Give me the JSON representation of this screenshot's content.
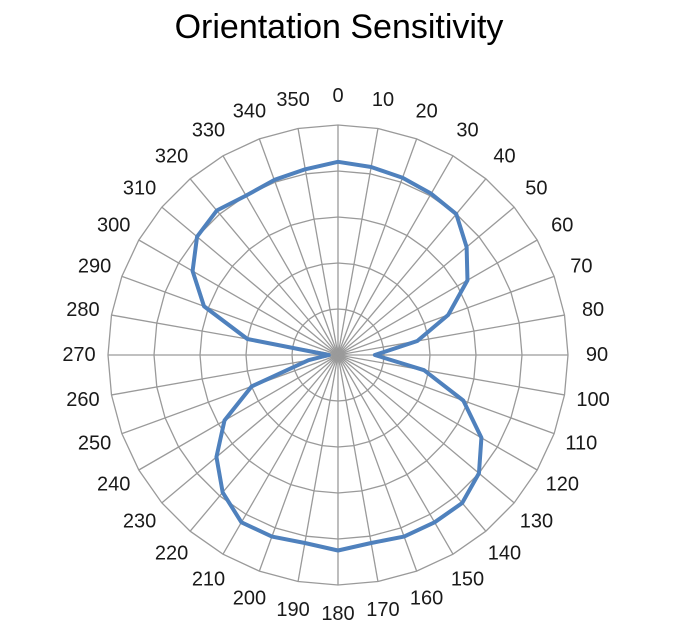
{
  "chart_data": {
    "type": "radar",
    "title": "Orientation Sensitivity",
    "angle_unit": "degrees",
    "angles": [
      0,
      10,
      20,
      30,
      40,
      50,
      60,
      70,
      80,
      90,
      100,
      110,
      120,
      130,
      140,
      150,
      160,
      170,
      180,
      190,
      200,
      210,
      220,
      230,
      240,
      250,
      260,
      270,
      280,
      290,
      300,
      310,
      320,
      330,
      340,
      350
    ],
    "series": [
      {
        "values": [
          0.84,
          0.83,
          0.82,
          0.81,
          0.8,
          0.73,
          0.65,
          0.51,
          0.35,
          0.16,
          0.38,
          0.58,
          0.72,
          0.8,
          0.84,
          0.84,
          0.84,
          0.83,
          0.85,
          0.83,
          0.84,
          0.84,
          0.78,
          0.69,
          0.57,
          0.4,
          0.13,
          0.04,
          0.4,
          0.62,
          0.73,
          0.8,
          0.82,
          0.8,
          0.81,
          0.82
        ],
        "color": "#4f81bd"
      }
    ],
    "rlim": [
      0,
      1
    ],
    "rings": [
      0.2,
      0.4,
      0.6,
      0.8,
      1.0
    ],
    "grid": true,
    "legend": "none"
  }
}
